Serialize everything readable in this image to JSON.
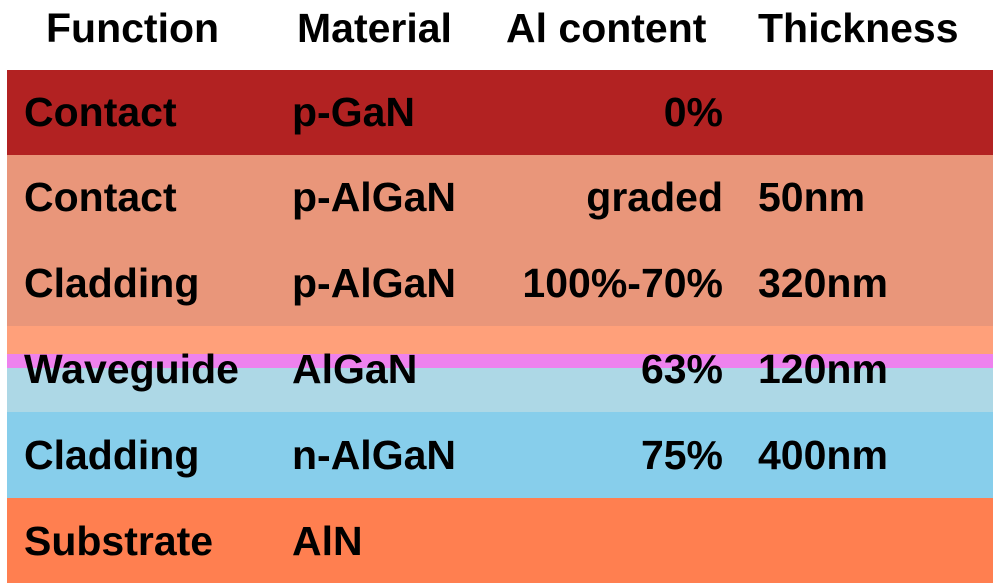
{
  "header": {
    "function": "Function",
    "material": "Material",
    "al_content": "Al content",
    "thickness": "Thickness"
  },
  "colors": {
    "contact_pgan": "#b22222",
    "contact_cladding_palgan": "#e9967a",
    "waveguide_upper": "#ffa07a",
    "quantum_well": "#ee82ee",
    "waveguide_lower": "#add8e6",
    "cladding_nalgan": "#87ceeb",
    "substrate": "#ff7f50"
  },
  "rows": [
    {
      "function": "Contact",
      "material": "p-GaN",
      "al_content": "0%",
      "thickness": ""
    },
    {
      "function": "Contact",
      "material": "p-AlGaN",
      "al_content": "graded",
      "thickness": "50nm"
    },
    {
      "function": "Cladding",
      "material": "p-AlGaN",
      "al_content": "100%-70%",
      "thickness": "320nm"
    },
    {
      "function": "Waveguide",
      "material": "AlGaN",
      "al_content": "63%",
      "thickness": "120nm"
    },
    {
      "function": "Cladding",
      "material": "n-AlGaN",
      "al_content": "75%",
      "thickness": "400nm"
    },
    {
      "function": "Substrate",
      "material": "AlN",
      "al_content": "",
      "thickness": ""
    }
  ]
}
